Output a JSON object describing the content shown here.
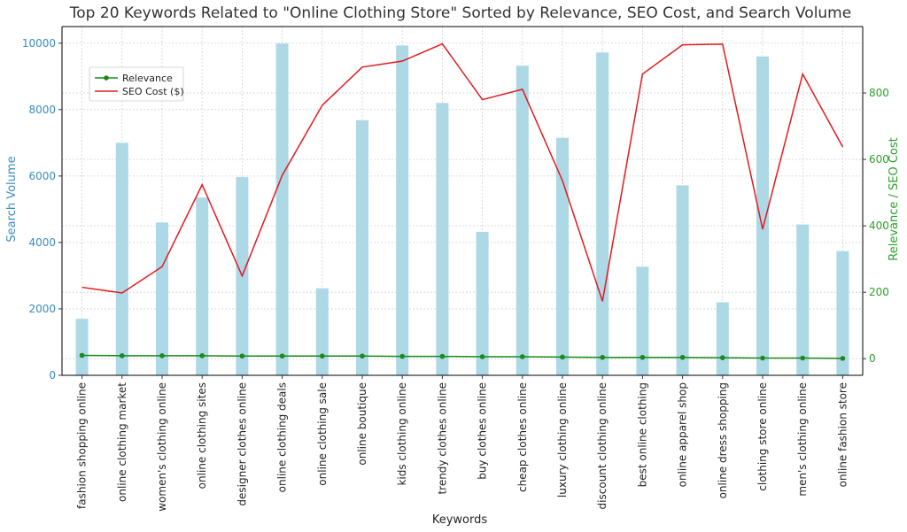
{
  "chart_data": {
    "type": "bar+line",
    "title": "Top 20 Keywords Related to \"Online Clothing Store\" Sorted by Relevance, SEO Cost, and Search Volume",
    "xlabel": "Keywords",
    "ylabel_left": "Search Volume",
    "ylabel_right": "Relevance / SEO Cost",
    "ylim_left": [
      0,
      10500
    ],
    "ylim_right": [
      -50,
      1000
    ],
    "yticks_left": [
      0,
      2000,
      4000,
      6000,
      8000,
      10000
    ],
    "yticks_right": [
      0,
      200,
      400,
      600,
      800
    ],
    "grid": true,
    "legend_position": "upper-left",
    "categories": [
      "fashion shopping online",
      "online clothing market",
      "women's clothing online",
      "online clothing sites",
      "designer clothes online",
      "online clothing deals",
      "online clothing sale",
      "online boutique",
      "kids clothing online",
      "trendy clothes online",
      "buy clothes online",
      "cheap clothes online",
      "luxury clothing online",
      "discount clothing online",
      "best online clothing",
      "online apparel shop",
      "online dress shopping",
      "clothing store online",
      "men's clothing online",
      "online fashion store"
    ],
    "search_volume": [
      1700,
      7000,
      4600,
      5350,
      5970,
      9990,
      2620,
      7680,
      9930,
      8200,
      4320,
      9320,
      7150,
      9720,
      3270,
      5720,
      2200,
      9600,
      4540,
      3740
    ],
    "series": [
      {
        "name": "Relevance",
        "color": "#1a8a1a",
        "values": [
          10,
          9,
          9,
          9,
          8,
          8,
          8,
          8,
          7,
          7,
          6,
          6,
          5,
          4,
          4,
          4,
          3,
          2,
          2,
          1
        ]
      },
      {
        "name": "SEO Cost ($)",
        "color": "#e31a1c",
        "values": [
          215,
          198,
          277,
          524,
          249,
          552,
          763,
          878,
          896,
          948,
          780,
          811,
          536,
          173,
          857,
          945,
          947,
          390,
          857,
          638
        ]
      }
    ],
    "bar_color": "#add8e6"
  }
}
